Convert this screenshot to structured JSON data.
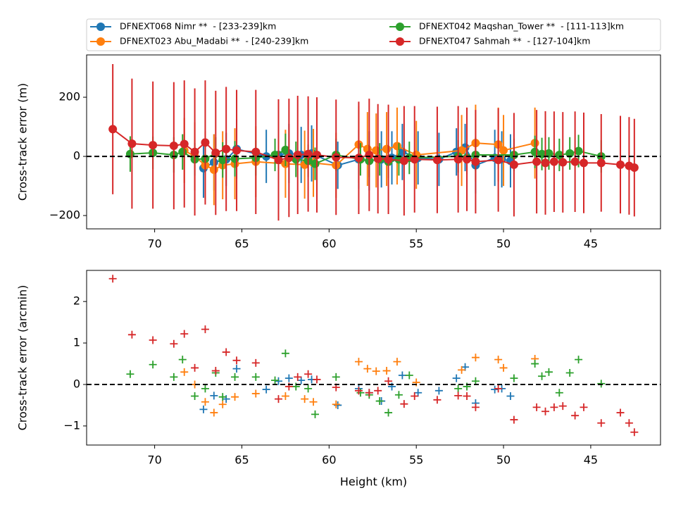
{
  "chart_data": [
    {
      "type": "errorbar",
      "ylabel": "Cross-track error (m)",
      "xlim": [
        73.9,
        41.0
      ],
      "xticks": [
        70,
        65,
        60,
        55,
        50,
        45
      ],
      "ylim": [
        -245,
        343
      ],
      "yticks": [
        {
          "value": -200,
          "label": "−200"
        },
        0,
        200
      ],
      "reference_line": 0,
      "legend": "top",
      "series": [
        {
          "name": "DFNEXT068 Nimr **  - [233-239]km",
          "color": "#1f77b4",
          "x": [
            67.2,
            66.6,
            65.9,
            65.3,
            63.6,
            62.9,
            62.3,
            61.6,
            61.0,
            59.5,
            58.3,
            57.7,
            57.0,
            56.4,
            55.8,
            54.9,
            53.7,
            52.7,
            52.2,
            51.6,
            50.5,
            50.1,
            49.6
          ],
          "values": [
            -40,
            -20,
            -10,
            25,
            0,
            5,
            10,
            5,
            10,
            -30,
            -10,
            -15,
            -10,
            -5,
            15,
            -5,
            -10,
            15,
            30,
            -30,
            -5,
            -10,
            -15
          ],
          "errors": [
            100,
            95,
            90,
            100,
            90,
            95,
            100,
            95,
            95,
            80,
            100,
            100,
            95,
            90,
            95,
            90,
            90,
            80,
            80,
            95,
            95,
            95,
            90
          ]
        },
        {
          "name": "DFNEXT023 Abu_Madabi **  - [240-239]km",
          "color": "#ff7f0e",
          "x": [
            68.3,
            67.7,
            67.1,
            66.6,
            66.1,
            65.4,
            64.2,
            62.5,
            61.4,
            60.9,
            59.6,
            58.3,
            57.8,
            57.3,
            56.7,
            56.1,
            55.0,
            52.4,
            51.6,
            50.3,
            50.0,
            48.2
          ],
          "values": [
            20,
            0,
            -30,
            -45,
            -30,
            -25,
            -18,
            -25,
            -28,
            -22,
            -30,
            40,
            25,
            20,
            25,
            35,
            5,
            20,
            45,
            40,
            20,
            45
          ],
          "errors": [
            110,
            115,
            115,
            120,
            115,
            120,
            120,
            115,
            115,
            115,
            110,
            130,
            125,
            125,
            125,
            130,
            115,
            120,
            130,
            125,
            120,
            120
          ]
        },
        {
          "name": "DFNEXT042 Maqshan_Tower **  - [111-113]km",
          "color": "#2ca02c",
          "x": [
            71.4,
            70.1,
            68.9,
            68.4,
            67.7,
            67.1,
            66.5,
            66.1,
            65.4,
            64.2,
            63.1,
            62.5,
            61.9,
            61.2,
            60.8,
            59.6,
            58.2,
            57.7,
            57.1,
            56.6,
            56.0,
            55.4,
            52.6,
            52.1,
            51.6,
            49.4,
            48.2,
            47.8,
            47.4,
            46.8,
            46.2,
            45.7,
            44.4
          ],
          "values": [
            8,
            12,
            5,
            15,
            -10,
            -8,
            10,
            -12,
            -8,
            -5,
            5,
            22,
            -10,
            -15,
            -25,
            5,
            -10,
            -15,
            -10,
            -18,
            -10,
            -5,
            0,
            -5,
            5,
            5,
            15,
            8,
            10,
            5,
            10,
            18,
            0
          ],
          "errors": [
            60,
            55,
            60,
            60,
            55,
            55,
            55,
            60,
            60,
            60,
            55,
            55,
            60,
            55,
            55,
            55,
            55,
            55,
            55,
            55,
            55,
            55,
            55,
            55,
            55,
            55,
            55,
            55,
            55,
            55,
            55,
            55,
            55
          ]
        },
        {
          "name": "DFNEXT047 Sahmah **  - [127-104]km",
          "color": "#d62728",
          "x": [
            72.4,
            71.3,
            70.1,
            68.9,
            68.3,
            67.7,
            67.1,
            66.5,
            65.9,
            65.3,
            64.2,
            62.9,
            62.3,
            61.8,
            61.2,
            60.7,
            59.6,
            58.3,
            57.7,
            57.2,
            56.6,
            55.7,
            55.1,
            53.8,
            52.6,
            52.1,
            51.6,
            50.3,
            49.4,
            48.1,
            47.6,
            47.1,
            46.6,
            45.9,
            45.4,
            44.4,
            43.3,
            42.8,
            42.5
          ],
          "values": [
            92,
            43,
            38,
            36,
            42,
            15,
            47,
            12,
            25,
            20,
            15,
            -12,
            -5,
            5,
            8,
            5,
            -3,
            -5,
            5,
            -8,
            -10,
            -15,
            -10,
            -12,
            -10,
            -10,
            -18,
            -12,
            -28,
            -18,
            -22,
            -18,
            -20,
            -18,
            -22,
            -22,
            -28,
            -32,
            -38
          ],
          "errors": [
            220,
            220,
            215,
            215,
            215,
            215,
            210,
            210,
            210,
            205,
            210,
            205,
            200,
            200,
            195,
            195,
            195,
            190,
            190,
            185,
            185,
            185,
            180,
            180,
            180,
            175,
            175,
            175,
            175,
            175,
            175,
            170,
            170,
            170,
            170,
            165,
            165,
            165,
            165
          ]
        }
      ]
    },
    {
      "type": "scatter",
      "xlabel": "Height (km)",
      "ylabel": "Cross-track error (arcmin)",
      "xlim": [
        73.9,
        41.0
      ],
      "xticks": [
        70,
        65,
        60,
        55,
        50,
        45
      ],
      "ylim": [
        -1.46,
        2.75
      ],
      "yticks": [
        {
          "value": -1,
          "label": "−1"
        },
        0,
        1,
        2
      ],
      "reference_line": 0,
      "series": [
        {
          "color": "#1f77b4",
          "x": [
            67.2,
            66.6,
            65.9,
            65.3,
            63.6,
            62.9,
            62.3,
            61.6,
            61.0,
            59.5,
            58.3,
            57.7,
            57.0,
            56.4,
            55.8,
            54.9,
            53.7,
            52.7,
            52.2,
            51.6,
            50.5,
            50.1,
            49.6
          ],
          "values": [
            -0.6,
            -0.27,
            -0.35,
            0.38,
            -0.12,
            0.08,
            0.15,
            0.1,
            0.12,
            -0.5,
            -0.1,
            -0.2,
            -0.4,
            -0.05,
            0.22,
            -0.2,
            -0.15,
            0.15,
            0.42,
            -0.45,
            -0.12,
            -0.1,
            -0.28
          ]
        },
        {
          "color": "#ff7f0e",
          "x": [
            68.3,
            67.7,
            67.1,
            66.6,
            66.1,
            65.4,
            64.2,
            62.5,
            61.4,
            60.9,
            59.6,
            58.3,
            57.8,
            57.3,
            56.7,
            56.1,
            55.0,
            52.4,
            51.6,
            50.3,
            50.0,
            48.2
          ],
          "values": [
            0.3,
            0,
            -0.42,
            -0.68,
            -0.48,
            -0.3,
            -0.22,
            -0.28,
            -0.35,
            -0.42,
            -0.48,
            0.55,
            0.38,
            0.32,
            0.33,
            0.55,
            0.05,
            0.35,
            0.65,
            0.6,
            0.4,
            0.62
          ]
        },
        {
          "color": "#2ca02c",
          "x": [
            71.4,
            70.1,
            68.9,
            68.4,
            67.7,
            67.1,
            66.5,
            66.1,
            65.4,
            64.2,
            63.1,
            62.5,
            61.9,
            61.2,
            60.8,
            59.6,
            58.2,
            57.7,
            57.1,
            56.6,
            56.0,
            55.4,
            52.6,
            52.1,
            51.6,
            49.4,
            48.2,
            47.8,
            47.4,
            46.8,
            46.2,
            45.7,
            44.4
          ],
          "values": [
            0.25,
            0.48,
            0.18,
            0.6,
            -0.28,
            -0.1,
            0.28,
            -0.3,
            0.18,
            0.18,
            0.1,
            0.75,
            -0.05,
            -0.1,
            -0.72,
            0.18,
            -0.2,
            -0.25,
            -0.4,
            -0.68,
            -0.25,
            0.22,
            -0.1,
            -0.05,
            0.08,
            0.15,
            0.5,
            0.2,
            0.3,
            -0.2,
            0.28,
            0.6,
            0.02
          ]
        },
        {
          "color": "#d62728",
          "x": [
            72.4,
            71.3,
            70.1,
            68.9,
            68.3,
            67.7,
            67.1,
            66.5,
            65.9,
            65.3,
            64.2,
            62.9,
            62.3,
            61.8,
            61.2,
            60.7,
            59.6,
            58.3,
            57.7,
            57.2,
            56.6,
            55.7,
            55.1,
            53.8,
            52.6,
            52.1,
            51.6,
            50.3,
            49.4,
            48.1,
            47.6,
            47.1,
            46.6,
            45.9,
            45.4,
            44.4,
            43.3,
            42.8,
            42.5
          ],
          "values": [
            2.55,
            1.2,
            1.07,
            0.98,
            1.22,
            0.4,
            1.33,
            0.33,
            0.78,
            0.58,
            0.52,
            -0.35,
            -0.05,
            0.18,
            0.25,
            0.12,
            -0.07,
            -0.15,
            -0.2,
            -0.15,
            0.08,
            -0.47,
            -0.28,
            -0.37,
            -0.27,
            -0.28,
            -0.55,
            -0.1,
            -0.85,
            -0.55,
            -0.65,
            -0.55,
            -0.52,
            -0.75,
            -0.55,
            -0.93,
            -0.68,
            -0.93,
            -1.15
          ]
        }
      ]
    }
  ]
}
